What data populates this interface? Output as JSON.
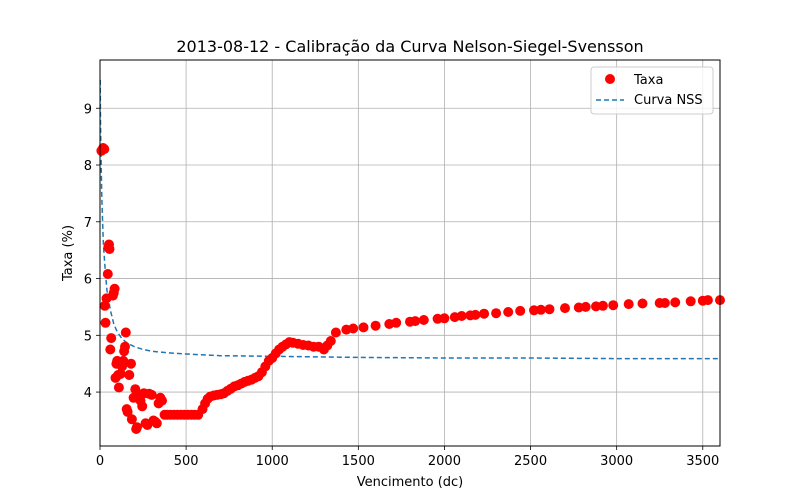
{
  "chart_data": {
    "type": "scatter",
    "title": "2013-08-12 - Calibração da Curva Nelson-Siegel-Svensson",
    "xlabel": "Vencimento (dc)",
    "ylabel": "Taxa (%)",
    "xlim": [
      0,
      3600
    ],
    "ylim": [
      3.05,
      9.85
    ],
    "xticks": [
      0,
      500,
      1000,
      1500,
      2000,
      2500,
      3000,
      3500
    ],
    "yticks": [
      4,
      5,
      6,
      7,
      8,
      9
    ],
    "grid": true,
    "legend_position": "top-right",
    "series": [
      {
        "name": "Taxa",
        "kind": "scatter",
        "color": "#ff0000",
        "points": [
          [
            8,
            8.25
          ],
          [
            18,
            8.3
          ],
          [
            25,
            8.28
          ],
          [
            28,
            5.52
          ],
          [
            32,
            5.22
          ],
          [
            38,
            5.65
          ],
          [
            45,
            6.08
          ],
          [
            48,
            6.55
          ],
          [
            52,
            6.6
          ],
          [
            55,
            6.52
          ],
          [
            60,
            4.75
          ],
          [
            65,
            4.95
          ],
          [
            75,
            5.7
          ],
          [
            80,
            5.75
          ],
          [
            85,
            5.82
          ],
          [
            90,
            4.25
          ],
          [
            95,
            4.5
          ],
          [
            100,
            4.55
          ],
          [
            105,
            4.3
          ],
          [
            110,
            4.08
          ],
          [
            115,
            4.5
          ],
          [
            120,
            4.32
          ],
          [
            128,
            4.45
          ],
          [
            135,
            4.55
          ],
          [
            140,
            4.72
          ],
          [
            145,
            4.8
          ],
          [
            150,
            5.05
          ],
          [
            155,
            3.7
          ],
          [
            160,
            3.65
          ],
          [
            170,
            4.3
          ],
          [
            180,
            4.5
          ],
          [
            185,
            3.52
          ],
          [
            195,
            3.9
          ],
          [
            205,
            4.05
          ],
          [
            210,
            3.35
          ],
          [
            215,
            3.38
          ],
          [
            225,
            3.95
          ],
          [
            235,
            3.85
          ],
          [
            245,
            3.75
          ],
          [
            255,
            3.98
          ],
          [
            265,
            3.45
          ],
          [
            275,
            3.42
          ],
          [
            285,
            3.97
          ],
          [
            300,
            3.95
          ],
          [
            310,
            3.5
          ],
          [
            320,
            3.48
          ],
          [
            330,
            3.45
          ],
          [
            340,
            3.8
          ],
          [
            350,
            3.9
          ],
          [
            360,
            3.85
          ],
          [
            375,
            3.6
          ],
          [
            390,
            3.6
          ],
          [
            410,
            3.6
          ],
          [
            430,
            3.6
          ],
          [
            450,
            3.6
          ],
          [
            470,
            3.6
          ],
          [
            490,
            3.6
          ],
          [
            510,
            3.6
          ],
          [
            530,
            3.6
          ],
          [
            550,
            3.6
          ],
          [
            570,
            3.6
          ],
          [
            595,
            3.7
          ],
          [
            610,
            3.8
          ],
          [
            625,
            3.88
          ],
          [
            640,
            3.92
          ],
          [
            660,
            3.94
          ],
          [
            680,
            3.95
          ],
          [
            700,
            3.96
          ],
          [
            720,
            3.98
          ],
          [
            740,
            4.02
          ],
          [
            760,
            4.06
          ],
          [
            780,
            4.1
          ],
          [
            800,
            4.12
          ],
          [
            820,
            4.15
          ],
          [
            840,
            4.18
          ],
          [
            860,
            4.2
          ],
          [
            880,
            4.22
          ],
          [
            900,
            4.25
          ],
          [
            920,
            4.28
          ],
          [
            940,
            4.35
          ],
          [
            960,
            4.45
          ],
          [
            980,
            4.55
          ],
          [
            1000,
            4.6
          ],
          [
            1020,
            4.68
          ],
          [
            1040,
            4.75
          ],
          [
            1060,
            4.8
          ],
          [
            1080,
            4.84
          ],
          [
            1100,
            4.88
          ],
          [
            1120,
            4.87
          ],
          [
            1150,
            4.85
          ],
          [
            1180,
            4.83
          ],
          [
            1210,
            4.82
          ],
          [
            1240,
            4.8
          ],
          [
            1270,
            4.8
          ],
          [
            1300,
            4.75
          ],
          [
            1320,
            4.82
          ],
          [
            1340,
            4.9
          ],
          [
            1370,
            5.05
          ],
          [
            1430,
            5.1
          ],
          [
            1470,
            5.12
          ],
          [
            1530,
            5.14
          ],
          [
            1600,
            5.17
          ],
          [
            1680,
            5.2
          ],
          [
            1720,
            5.22
          ],
          [
            1800,
            5.24
          ],
          [
            1830,
            5.25
          ],
          [
            1880,
            5.27
          ],
          [
            1960,
            5.29
          ],
          [
            2000,
            5.3
          ],
          [
            2060,
            5.32
          ],
          [
            2100,
            5.34
          ],
          [
            2150,
            5.35
          ],
          [
            2180,
            5.36
          ],
          [
            2230,
            5.38
          ],
          [
            2300,
            5.39
          ],
          [
            2370,
            5.41
          ],
          [
            2440,
            5.43
          ],
          [
            2520,
            5.44
          ],
          [
            2560,
            5.45
          ],
          [
            2610,
            5.46
          ],
          [
            2700,
            5.48
          ],
          [
            2780,
            5.49
          ],
          [
            2820,
            5.5
          ],
          [
            2880,
            5.51
          ],
          [
            2920,
            5.52
          ],
          [
            2980,
            5.53
          ],
          [
            3070,
            5.55
          ],
          [
            3150,
            5.56
          ],
          [
            3250,
            5.57
          ],
          [
            3280,
            5.57
          ],
          [
            3340,
            5.58
          ],
          [
            3430,
            5.6
          ],
          [
            3500,
            5.61
          ],
          [
            3530,
            5.62
          ],
          [
            3600,
            5.62
          ]
        ]
      },
      {
        "name": "Curva NSS",
        "kind": "line",
        "style": "dashed",
        "color": "#1f77b4",
        "points": [
          [
            1,
            9.5
          ],
          [
            3,
            8.75
          ],
          [
            6,
            8.2
          ],
          [
            10,
            7.5
          ],
          [
            15,
            7.0
          ],
          [
            20,
            6.6
          ],
          [
            30,
            6.15
          ],
          [
            40,
            5.8
          ],
          [
            60,
            5.45
          ],
          [
            80,
            5.2
          ],
          [
            100,
            5.06
          ],
          [
            130,
            4.93
          ],
          [
            160,
            4.86
          ],
          [
            200,
            4.8
          ],
          [
            250,
            4.75
          ],
          [
            300,
            4.72
          ],
          [
            400,
            4.69
          ],
          [
            500,
            4.67
          ],
          [
            700,
            4.64
          ],
          [
            1000,
            4.63
          ],
          [
            1500,
            4.61
          ],
          [
            2000,
            4.6
          ],
          [
            2500,
            4.6
          ],
          [
            3000,
            4.59
          ],
          [
            3600,
            4.59
          ]
        ]
      }
    ]
  }
}
